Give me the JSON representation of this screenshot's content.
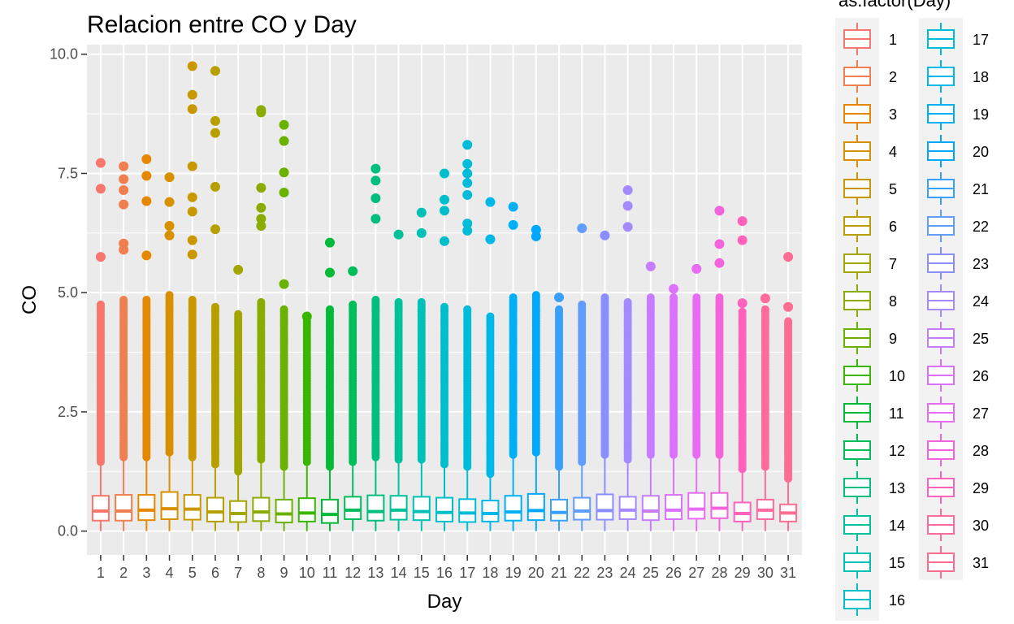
{
  "chart_data": {
    "type": "boxplot",
    "title": "Relacion entre CO y Day",
    "xlabel": "Day",
    "ylabel": "CO",
    "ylim": [
      -0.5,
      10.2
    ],
    "yticks": [
      0.0,
      2.5,
      5.0,
      7.5,
      10.0
    ],
    "ytick_labels": [
      "0.0",
      "2.5",
      "5.0",
      "7.5",
      "10.0"
    ],
    "legend_title": "as.factor(Day)",
    "legend_position": "right",
    "grid": true,
    "categories": [
      "1",
      "2",
      "3",
      "4",
      "5",
      "6",
      "7",
      "8",
      "9",
      "10",
      "11",
      "12",
      "13",
      "14",
      "15",
      "16",
      "17",
      "18",
      "19",
      "20",
      "21",
      "22",
      "23",
      "24",
      "25",
      "26",
      "27",
      "28",
      "29",
      "30",
      "31"
    ],
    "colors": [
      "#F8766D",
      "#F07E4F",
      "#E58700",
      "#D89000",
      "#C99800",
      "#B79F00",
      "#A3A500",
      "#8BAB00",
      "#6BB100",
      "#39B600",
      "#00BA38",
      "#00BD5C",
      "#00BF7D",
      "#00C19A",
      "#00C1B5",
      "#00BFCA",
      "#00BCD8",
      "#00B8E7",
      "#00B0F6",
      "#00A7FF",
      "#3A9FFF",
      "#619CFF",
      "#8A8EFF",
      "#A58AFF",
      "#C77CFF",
      "#DB72FB",
      "#E76BF3",
      "#F364DC",
      "#FF62BC",
      "#FF6A9F",
      "#FF6C91"
    ],
    "series": [
      {
        "name": "1",
        "q1": 0.22,
        "median": 0.42,
        "q3": 0.74,
        "whisker_high": 1.45,
        "whisker_low": 0.0,
        "outliers": [
          5.75,
          7.18,
          7.72
        ]
      },
      {
        "name": "2",
        "q1": 0.22,
        "median": 0.42,
        "q3": 0.76,
        "whisker_high": 1.55,
        "whisker_low": 0.0,
        "outliers": [
          5.9,
          6.03,
          6.85,
          7.15,
          7.38,
          7.65
        ]
      },
      {
        "name": "3",
        "q1": 0.23,
        "median": 0.44,
        "q3": 0.76,
        "whisker_high": 1.55,
        "whisker_low": 0.0,
        "outliers": [
          5.78,
          6.92,
          7.45,
          7.8
        ]
      },
      {
        "name": "4",
        "q1": 0.25,
        "median": 0.47,
        "q3": 0.82,
        "whisker_high": 1.65,
        "whisker_low": 0.0,
        "outliers": [
          6.2,
          6.4,
          6.9,
          7.42
        ]
      },
      {
        "name": "5",
        "q1": 0.24,
        "median": 0.46,
        "q3": 0.76,
        "whisker_high": 1.55,
        "whisker_low": 0.0,
        "outliers": [
          5.8,
          6.1,
          6.7,
          7.0,
          7.65,
          8.85,
          9.15,
          9.75
        ]
      },
      {
        "name": "6",
        "q1": 0.2,
        "median": 0.4,
        "q3": 0.7,
        "whisker_high": 1.4,
        "whisker_low": 0.0,
        "outliers": [
          6.33,
          7.22,
          8.35,
          8.6,
          9.65
        ]
      },
      {
        "name": "7",
        "q1": 0.19,
        "median": 0.37,
        "q3": 0.63,
        "whisker_high": 1.25,
        "whisker_low": 0.0,
        "outliers": [
          5.48
        ]
      },
      {
        "name": "8",
        "q1": 0.21,
        "median": 0.4,
        "q3": 0.7,
        "whisker_high": 1.5,
        "whisker_low": 0.0,
        "outliers": [
          6.4,
          6.55,
          6.78,
          7.2,
          8.78,
          8.83
        ]
      },
      {
        "name": "9",
        "q1": 0.18,
        "median": 0.36,
        "q3": 0.66,
        "whisker_high": 1.35,
        "whisker_low": 0.0,
        "outliers": [
          5.18,
          7.1,
          7.52,
          8.18,
          8.52
        ]
      },
      {
        "name": "10",
        "q1": 0.2,
        "median": 0.38,
        "q3": 0.69,
        "whisker_high": 1.45,
        "whisker_low": 0.0,
        "outliers": [
          4.5
        ]
      },
      {
        "name": "11",
        "q1": 0.17,
        "median": 0.35,
        "q3": 0.66,
        "whisker_high": 1.35,
        "whisker_low": 0.0,
        "outliers": [
          5.42,
          6.05
        ]
      },
      {
        "name": "12",
        "q1": 0.25,
        "median": 0.44,
        "q3": 0.72,
        "whisker_high": 1.45,
        "whisker_low": 0.0,
        "outliers": [
          5.45
        ]
      },
      {
        "name": "13",
        "q1": 0.22,
        "median": 0.41,
        "q3": 0.75,
        "whisker_high": 1.55,
        "whisker_low": 0.0,
        "outliers": [
          6.55,
          6.98,
          7.35,
          7.6
        ]
      },
      {
        "name": "14",
        "q1": 0.24,
        "median": 0.44,
        "q3": 0.74,
        "whisker_high": 1.5,
        "whisker_low": 0.0,
        "outliers": [
          6.22
        ]
      },
      {
        "name": "15",
        "q1": 0.23,
        "median": 0.41,
        "q3": 0.72,
        "whisker_high": 1.5,
        "whisker_low": 0.0,
        "outliers": [
          6.25,
          6.68
        ]
      },
      {
        "name": "16",
        "q1": 0.2,
        "median": 0.39,
        "q3": 0.7,
        "whisker_high": 1.4,
        "whisker_low": 0.0,
        "outliers": [
          6.08,
          6.72,
          6.95,
          7.5
        ]
      },
      {
        "name": "17",
        "q1": 0.19,
        "median": 0.38,
        "q3": 0.67,
        "whisker_high": 1.35,
        "whisker_low": 0.0,
        "outliers": [
          6.3,
          6.45,
          7.05,
          7.3,
          7.5,
          7.7,
          8.1
        ]
      },
      {
        "name": "18",
        "q1": 0.2,
        "median": 0.37,
        "q3": 0.64,
        "whisker_high": 1.2,
        "whisker_low": 0.0,
        "outliers": [
          6.12,
          6.9
        ]
      },
      {
        "name": "19",
        "q1": 0.22,
        "median": 0.4,
        "q3": 0.74,
        "whisker_high": 1.6,
        "whisker_low": 0.0,
        "outliers": [
          6.42,
          6.8
        ]
      },
      {
        "name": "20",
        "q1": 0.23,
        "median": 0.43,
        "q3": 0.78,
        "whisker_high": 1.65,
        "whisker_low": 0.0,
        "outliers": [
          6.18,
          6.32
        ]
      },
      {
        "name": "21",
        "q1": 0.22,
        "median": 0.39,
        "q3": 0.66,
        "whisker_high": 1.35,
        "whisker_low": 0.0,
        "outliers": [
          4.9
        ]
      },
      {
        "name": "22",
        "q1": 0.24,
        "median": 0.42,
        "q3": 0.7,
        "whisker_high": 1.45,
        "whisker_low": 0.0,
        "outliers": [
          6.35
        ]
      },
      {
        "name": "23",
        "q1": 0.24,
        "median": 0.43,
        "q3": 0.77,
        "whisker_high": 1.6,
        "whisker_low": 0.0,
        "outliers": [
          6.2
        ]
      },
      {
        "name": "24",
        "q1": 0.25,
        "median": 0.44,
        "q3": 0.72,
        "whisker_high": 1.5,
        "whisker_low": 0.0,
        "outliers": [
          6.38,
          6.82,
          7.15
        ]
      },
      {
        "name": "25",
        "q1": 0.23,
        "median": 0.42,
        "q3": 0.74,
        "whisker_high": 1.6,
        "whisker_low": 0.0,
        "outliers": [
          5.55
        ]
      },
      {
        "name": "26",
        "q1": 0.25,
        "median": 0.44,
        "q3": 0.76,
        "whisker_high": 1.6,
        "whisker_low": 0.0,
        "outliers": [
          5.08
        ]
      },
      {
        "name": "27",
        "q1": 0.26,
        "median": 0.46,
        "q3": 0.8,
        "whisker_high": 1.6,
        "whisker_low": 0.0,
        "outliers": [
          5.5
        ]
      },
      {
        "name": "28",
        "q1": 0.27,
        "median": 0.48,
        "q3": 0.8,
        "whisker_high": 1.6,
        "whisker_low": 0.0,
        "outliers": [
          5.62,
          6.02,
          6.72
        ]
      },
      {
        "name": "29",
        "q1": 0.2,
        "median": 0.37,
        "q3": 0.6,
        "whisker_high": 1.3,
        "whisker_low": 0.0,
        "outliers": [
          4.78,
          6.1,
          6.5
        ]
      },
      {
        "name": "30",
        "q1": 0.25,
        "median": 0.44,
        "q3": 0.66,
        "whisker_high": 1.35,
        "whisker_low": 0.0,
        "outliers": [
          4.88
        ]
      },
      {
        "name": "31",
        "q1": 0.2,
        "median": 0.38,
        "q3": 0.56,
        "whisker_high": 1.1,
        "whisker_low": 0.0,
        "outliers": [
          4.7,
          5.75
        ]
      }
    ]
  }
}
